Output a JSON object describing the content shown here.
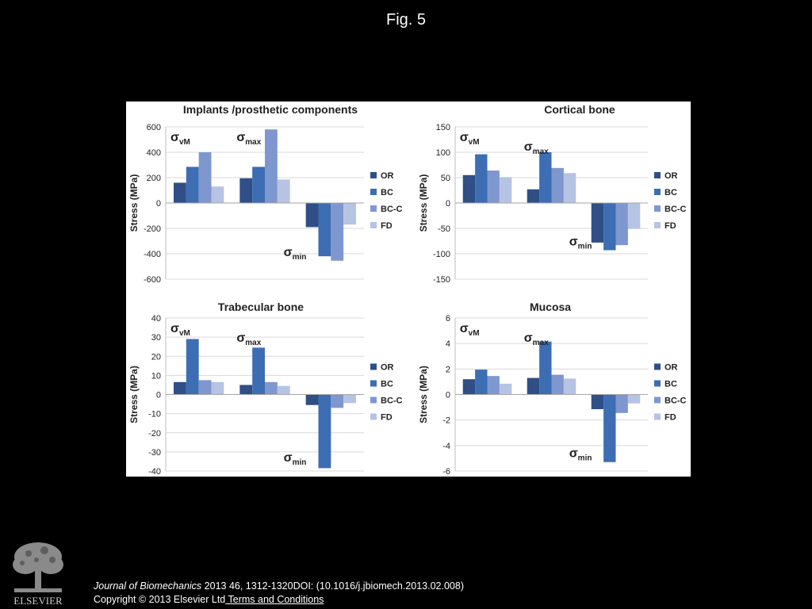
{
  "page": {
    "title": "Fig. 5",
    "journal": "Journal of Biomechanics",
    "citation_rest": " 2013 46, 1312-1320DOI: (10.1016/j.jbiomech.2013.02.008)",
    "copyright": "Copyright © 2013 Elsevier Ltd",
    "terms_link": " Terms and Conditions",
    "publisher_logo_text": "ELSEVIER"
  },
  "colors": {
    "OR": "#2f4f86",
    "BC": "#3d6db3",
    "BC-C": "#7f97cf",
    "FD": "#b6c3e3"
  },
  "chart_data": [
    {
      "type": "bar",
      "title": "Implants /prosthetic components",
      "ylabel": "Stress (MPa)",
      "ylim": [
        -600,
        600
      ],
      "yticks": [
        600,
        400,
        200,
        0,
        -200,
        -400,
        -600
      ],
      "groups": [
        {
          "sym": "σ",
          "sub": "vM"
        },
        {
          "sym": "σ",
          "sub": "max"
        },
        {
          "sym": "σ",
          "sub": "min"
        }
      ],
      "legend": [
        "OR",
        "BC",
        "BC-C",
        "FD"
      ],
      "series": [
        {
          "name": "OR",
          "values": [
            160,
            195,
            -190
          ]
        },
        {
          "name": "BC",
          "values": [
            285,
            285,
            -420
          ]
        },
        {
          "name": "BC-C",
          "values": [
            400,
            580,
            -455
          ]
        },
        {
          "name": "FD",
          "values": [
            130,
            185,
            -170
          ]
        }
      ],
      "grid": true,
      "legend_position": "right"
    },
    {
      "type": "bar",
      "title": "Cortical bone",
      "ylabel": "Stress (MPa)",
      "ylim": [
        -150,
        150
      ],
      "yticks": [
        150,
        100,
        50,
        0,
        -50,
        -100,
        -150
      ],
      "groups": [
        {
          "sym": "σ",
          "sub": "vM"
        },
        {
          "sym": "σ",
          "sub": "max"
        },
        {
          "sym": "σ",
          "sub": "min"
        }
      ],
      "legend": [
        "OR",
        "BC",
        "BC-C",
        "FD"
      ],
      "series": [
        {
          "name": "OR",
          "values": [
            55,
            27,
            -78
          ]
        },
        {
          "name": "BC",
          "values": [
            96,
            100,
            -93
          ]
        },
        {
          "name": "BC-C",
          "values": [
            64,
            69,
            -83
          ]
        },
        {
          "name": "FD",
          "values": [
            51,
            59,
            -51
          ]
        }
      ],
      "grid": true,
      "legend_position": "right"
    },
    {
      "type": "bar",
      "title": "Trabecular bone",
      "ylabel": "Stress (MPa)",
      "ylim": [
        -40,
        40
      ],
      "yticks": [
        40,
        30,
        20,
        10,
        0,
        -10,
        -20,
        -30,
        -40
      ],
      "groups": [
        {
          "sym": "σ",
          "sub": "vM"
        },
        {
          "sym": "σ",
          "sub": "max"
        },
        {
          "sym": "σ",
          "sub": "min"
        }
      ],
      "legend": [
        "OR",
        "BC",
        "BC-C",
        "FD"
      ],
      "series": [
        {
          "name": "OR",
          "values": [
            6.5,
            5,
            -5.5
          ]
        },
        {
          "name": "BC",
          "values": [
            29,
            24.5,
            -38.5
          ]
        },
        {
          "name": "BC-C",
          "values": [
            7.5,
            6.5,
            -7
          ]
        },
        {
          "name": "FD",
          "values": [
            6.5,
            4.5,
            -4.5
          ]
        }
      ],
      "grid": true,
      "legend_position": "right"
    },
    {
      "type": "bar",
      "title": "Mucosa",
      "ylabel": "Stress (MPa)",
      "ylim": [
        -6,
        6
      ],
      "yticks": [
        6,
        4,
        2,
        0,
        -2,
        -4,
        -6
      ],
      "groups": [
        {
          "sym": "σ",
          "sub": "vM"
        },
        {
          "sym": "σ",
          "sub": "max"
        },
        {
          "sym": "σ",
          "sub": "min"
        }
      ],
      "legend": [
        "OR",
        "BC",
        "BC-C",
        "FD"
      ],
      "series": [
        {
          "name": "OR",
          "values": [
            1.2,
            1.3,
            -1.15
          ]
        },
        {
          "name": "BC",
          "values": [
            1.95,
            4.15,
            -5.3
          ]
        },
        {
          "name": "BC-C",
          "values": [
            1.45,
            1.55,
            -1.45
          ]
        },
        {
          "name": "FD",
          "values": [
            0.85,
            1.25,
            -0.7
          ]
        }
      ],
      "grid": true,
      "legend_position": "right"
    }
  ]
}
